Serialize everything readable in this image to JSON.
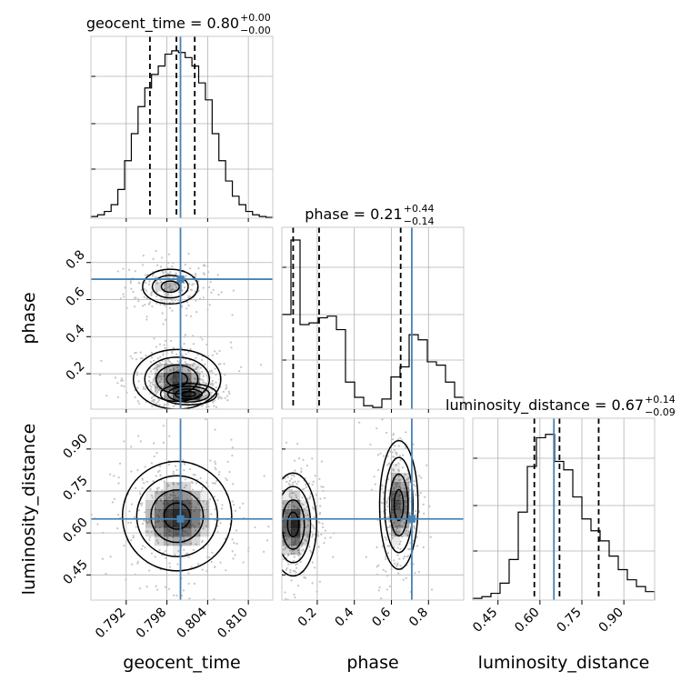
{
  "chart_data": {
    "type": "corner",
    "params": [
      "geocent_time",
      "phase",
      "luminosity_distance"
    ],
    "axis_labels": {
      "geocent_time": "geocent_time",
      "phase": "phase",
      "luminosity_distance": "luminosity_distance"
    },
    "titles": [
      {
        "param": "geocent_time",
        "label": "geocent_time = 0.80",
        "plus": "+0.00",
        "minus": "−0.00"
      },
      {
        "param": "phase",
        "label": "phase = 0.21",
        "plus": "+0.44",
        "minus": "−0.14"
      },
      {
        "param": "luminosity_distance",
        "label": "luminosity_distance = 0.67",
        "plus": "+0.14",
        "minus": "−0.09"
      }
    ],
    "ranges": {
      "geocent_time": [
        0.7868,
        0.8136
      ],
      "phase": [
        0.009,
        0.99
      ],
      "luminosity_distance": [
        0.36,
        1.01
      ]
    },
    "ticks": {
      "geocent_time": {
        "values": [
          0.792,
          0.798,
          0.804,
          0.81
        ],
        "labels": [
          "0.792",
          "0.798",
          "0.804",
          "0.810"
        ]
      },
      "phase": {
        "values": [
          0.2,
          0.4,
          0.6,
          0.8
        ],
        "labels": [
          "0.2",
          "0.4",
          "0.6",
          "0.8"
        ]
      },
      "luminosity_distance": {
        "values": [
          0.45,
          0.6,
          0.75,
          0.9
        ],
        "labels": [
          "0.45",
          "0.60",
          "0.75",
          "0.90"
        ]
      }
    },
    "truths": {
      "geocent_time": 0.8,
      "phase": 0.71,
      "luminosity_distance": 0.65
    },
    "quantiles": {
      "geocent_time": [
        0.7955,
        0.7994,
        0.8021
      ],
      "phase": [
        0.07,
        0.21,
        0.65
      ],
      "luminosity_distance": [
        0.58,
        0.67,
        0.81
      ]
    },
    "histograms": {
      "geocent_time": [
        0.01,
        0.02,
        0.04,
        0.08,
        0.17,
        0.34,
        0.5,
        0.66,
        0.77,
        0.85,
        0.9,
        0.97,
        0.99,
        0.98,
        0.95,
        0.9,
        0.8,
        0.7,
        0.5,
        0.34,
        0.22,
        0.13,
        0.08,
        0.04,
        0.02,
        0.01,
        0.005
      ],
      "phase": [
        0.56,
        1.0,
        0.5,
        0.51,
        0.54,
        0.55,
        0.47,
        0.16,
        0.07,
        0.02,
        0.01,
        0.06,
        0.19,
        0.25,
        0.44,
        0.41,
        0.28,
        0.26,
        0.16,
        0.07
      ],
      "luminosity_distance": [
        0.01,
        0.02,
        0.04,
        0.1,
        0.24,
        0.52,
        0.79,
        0.96,
        0.98,
        0.82,
        0.77,
        0.61,
        0.48,
        0.41,
        0.35,
        0.26,
        0.18,
        0.12,
        0.08,
        0.05
      ]
    },
    "joint_modes": [
      {
        "x": "geocent_time",
        "y": "phase",
        "modes": [
          {
            "cx": 0.7985,
            "cy": 0.67,
            "sx": 0.0024,
            "sy": 0.055,
            "w": 0.55
          },
          {
            "cx": 0.7995,
            "cy": 0.17,
            "sx": 0.0028,
            "sy": 0.07,
            "w": 0.9
          },
          {
            "cx": 0.8012,
            "cy": 0.09,
            "sx": 0.0018,
            "sy": 0.025,
            "w": 0.7
          }
        ]
      },
      {
        "x": "geocent_time",
        "y": "luminosity_distance",
        "modes": [
          {
            "cx": 0.7995,
            "cy": 0.66,
            "sx": 0.0035,
            "sy": 0.085,
            "w": 1.0
          }
        ]
      },
      {
        "x": "phase",
        "y": "luminosity_distance",
        "modes": [
          {
            "cx": 0.07,
            "cy": 0.63,
            "sx": 0.055,
            "sy": 0.08,
            "w": 0.9
          },
          {
            "cx": 0.64,
            "cy": 0.7,
            "sx": 0.045,
            "sy": 0.1,
            "w": 0.8
          }
        ]
      }
    ]
  },
  "colors": {
    "truth": "#4682b4",
    "line": "#000000",
    "grid": "#b0b0b0",
    "spine": "#c8c8c8",
    "scatter": "#c4c4c4",
    "density": "#000000"
  }
}
